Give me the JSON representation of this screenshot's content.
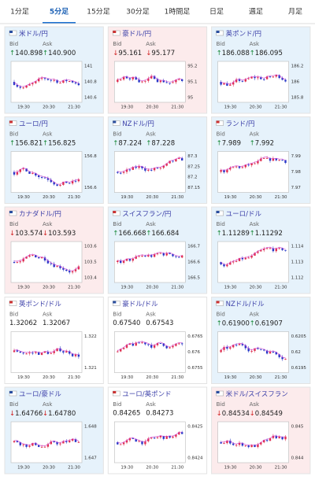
{
  "tabs": [
    "1分足",
    "5分足",
    "15分足",
    "30分足",
    "1時間足",
    "日足",
    "週足",
    "月足"
  ],
  "active_tab": 1,
  "bid_label": "Bid",
  "ask_label": "Ask",
  "times": [
    "19:30",
    "20:30",
    "21:30"
  ],
  "tiles": [
    {
      "name": "米ドル/円",
      "bid": "↑140.898",
      "ask": "↑140.900",
      "yticks": [
        "141",
        "140.8",
        "140.6"
      ],
      "bg": "#e6f2fb"
    },
    {
      "name": "豪ドル/円",
      "bid": "↓95.161",
      "ask": "↓95.177",
      "yticks": [
        "95.2",
        "95.1",
        "95"
      ],
      "bg": "#fcebec"
    },
    {
      "name": "英ポンド/円",
      "bid": "↑186.088",
      "ask": "↑186.095",
      "yticks": [
        "186.2",
        "186",
        "185.8"
      ],
      "bg": "#e6f2fb"
    },
    {
      "name": "ユーロ/円",
      "bid": "↑156.821",
      "ask": "↑156.825",
      "yticks": [
        "156.8",
        "156.6"
      ],
      "bg": "#e6f2fb"
    },
    {
      "name": "NZドル/円",
      "bid": "↑87.224",
      "ask": "↑87.228",
      "yticks": [
        "87.3",
        "87.25",
        "87.2",
        "87.15"
      ],
      "bg": "#e6f2fb"
    },
    {
      "name": "ランド/円",
      "bid": "↑7.989",
      "ask": "↑7.992",
      "yticks": [
        "7.99",
        "7.98",
        "7.97"
      ],
      "bg": "#e6f2fb"
    },
    {
      "name": "カナダドル/円",
      "bid": "↓103.574",
      "ask": "↓103.593",
      "yticks": [
        "103.6",
        "103.5",
        "103.4"
      ],
      "bg": "#fcebec"
    },
    {
      "name": "スイスフラン/円",
      "bid": "↑166.668",
      "ask": "↑166.684",
      "yticks": [
        "166.7",
        "166.6",
        "166.5"
      ],
      "bg": "#e6f2fb"
    },
    {
      "name": "ユーロ/ドル",
      "bid": "↑1.11289",
      "ask": "↑1.11292",
      "yticks": [
        "1.114",
        "1.113",
        "1.112"
      ],
      "bg": "#e6f2fb"
    },
    {
      "name": "英ポンド/ドル",
      "bid": "1.32062",
      "ask": "1.32067",
      "yticks": [
        "1.322",
        "1.321"
      ],
      "bg": "#ffffff"
    },
    {
      "name": "豪ドル/ドル",
      "bid": "0.67540",
      "ask": "0.67543",
      "yticks": [
        "0.6765",
        "0.676",
        "0.6755"
      ],
      "bg": "#ffffff"
    },
    {
      "name": "NZドル/ドル",
      "bid": "↑0.61900",
      "ask": "↑0.61907",
      "yticks": [
        "0.6205",
        "0.62",
        "0.6195"
      ],
      "bg": "#e6f2fb"
    },
    {
      "name": "ユーロ/豪ドル",
      "bid": "↓1.64766",
      "ask": "↓1.64780",
      "yticks": [
        "1.648",
        "1.647"
      ],
      "bg": "#e6f2fb"
    },
    {
      "name": "ユーロ/英ポンド",
      "bid": "0.84265",
      "ask": "0.84273",
      "yticks": [
        "0.8425",
        "0.8424"
      ],
      "bg": "#ffffff"
    },
    {
      "name": "米ドル/スイスフラン",
      "bid": "↓0.84534",
      "ask": "↓0.84549",
      "yticks": [
        "0.845",
        "0.844"
      ],
      "bg": "#fcebec"
    }
  ]
}
